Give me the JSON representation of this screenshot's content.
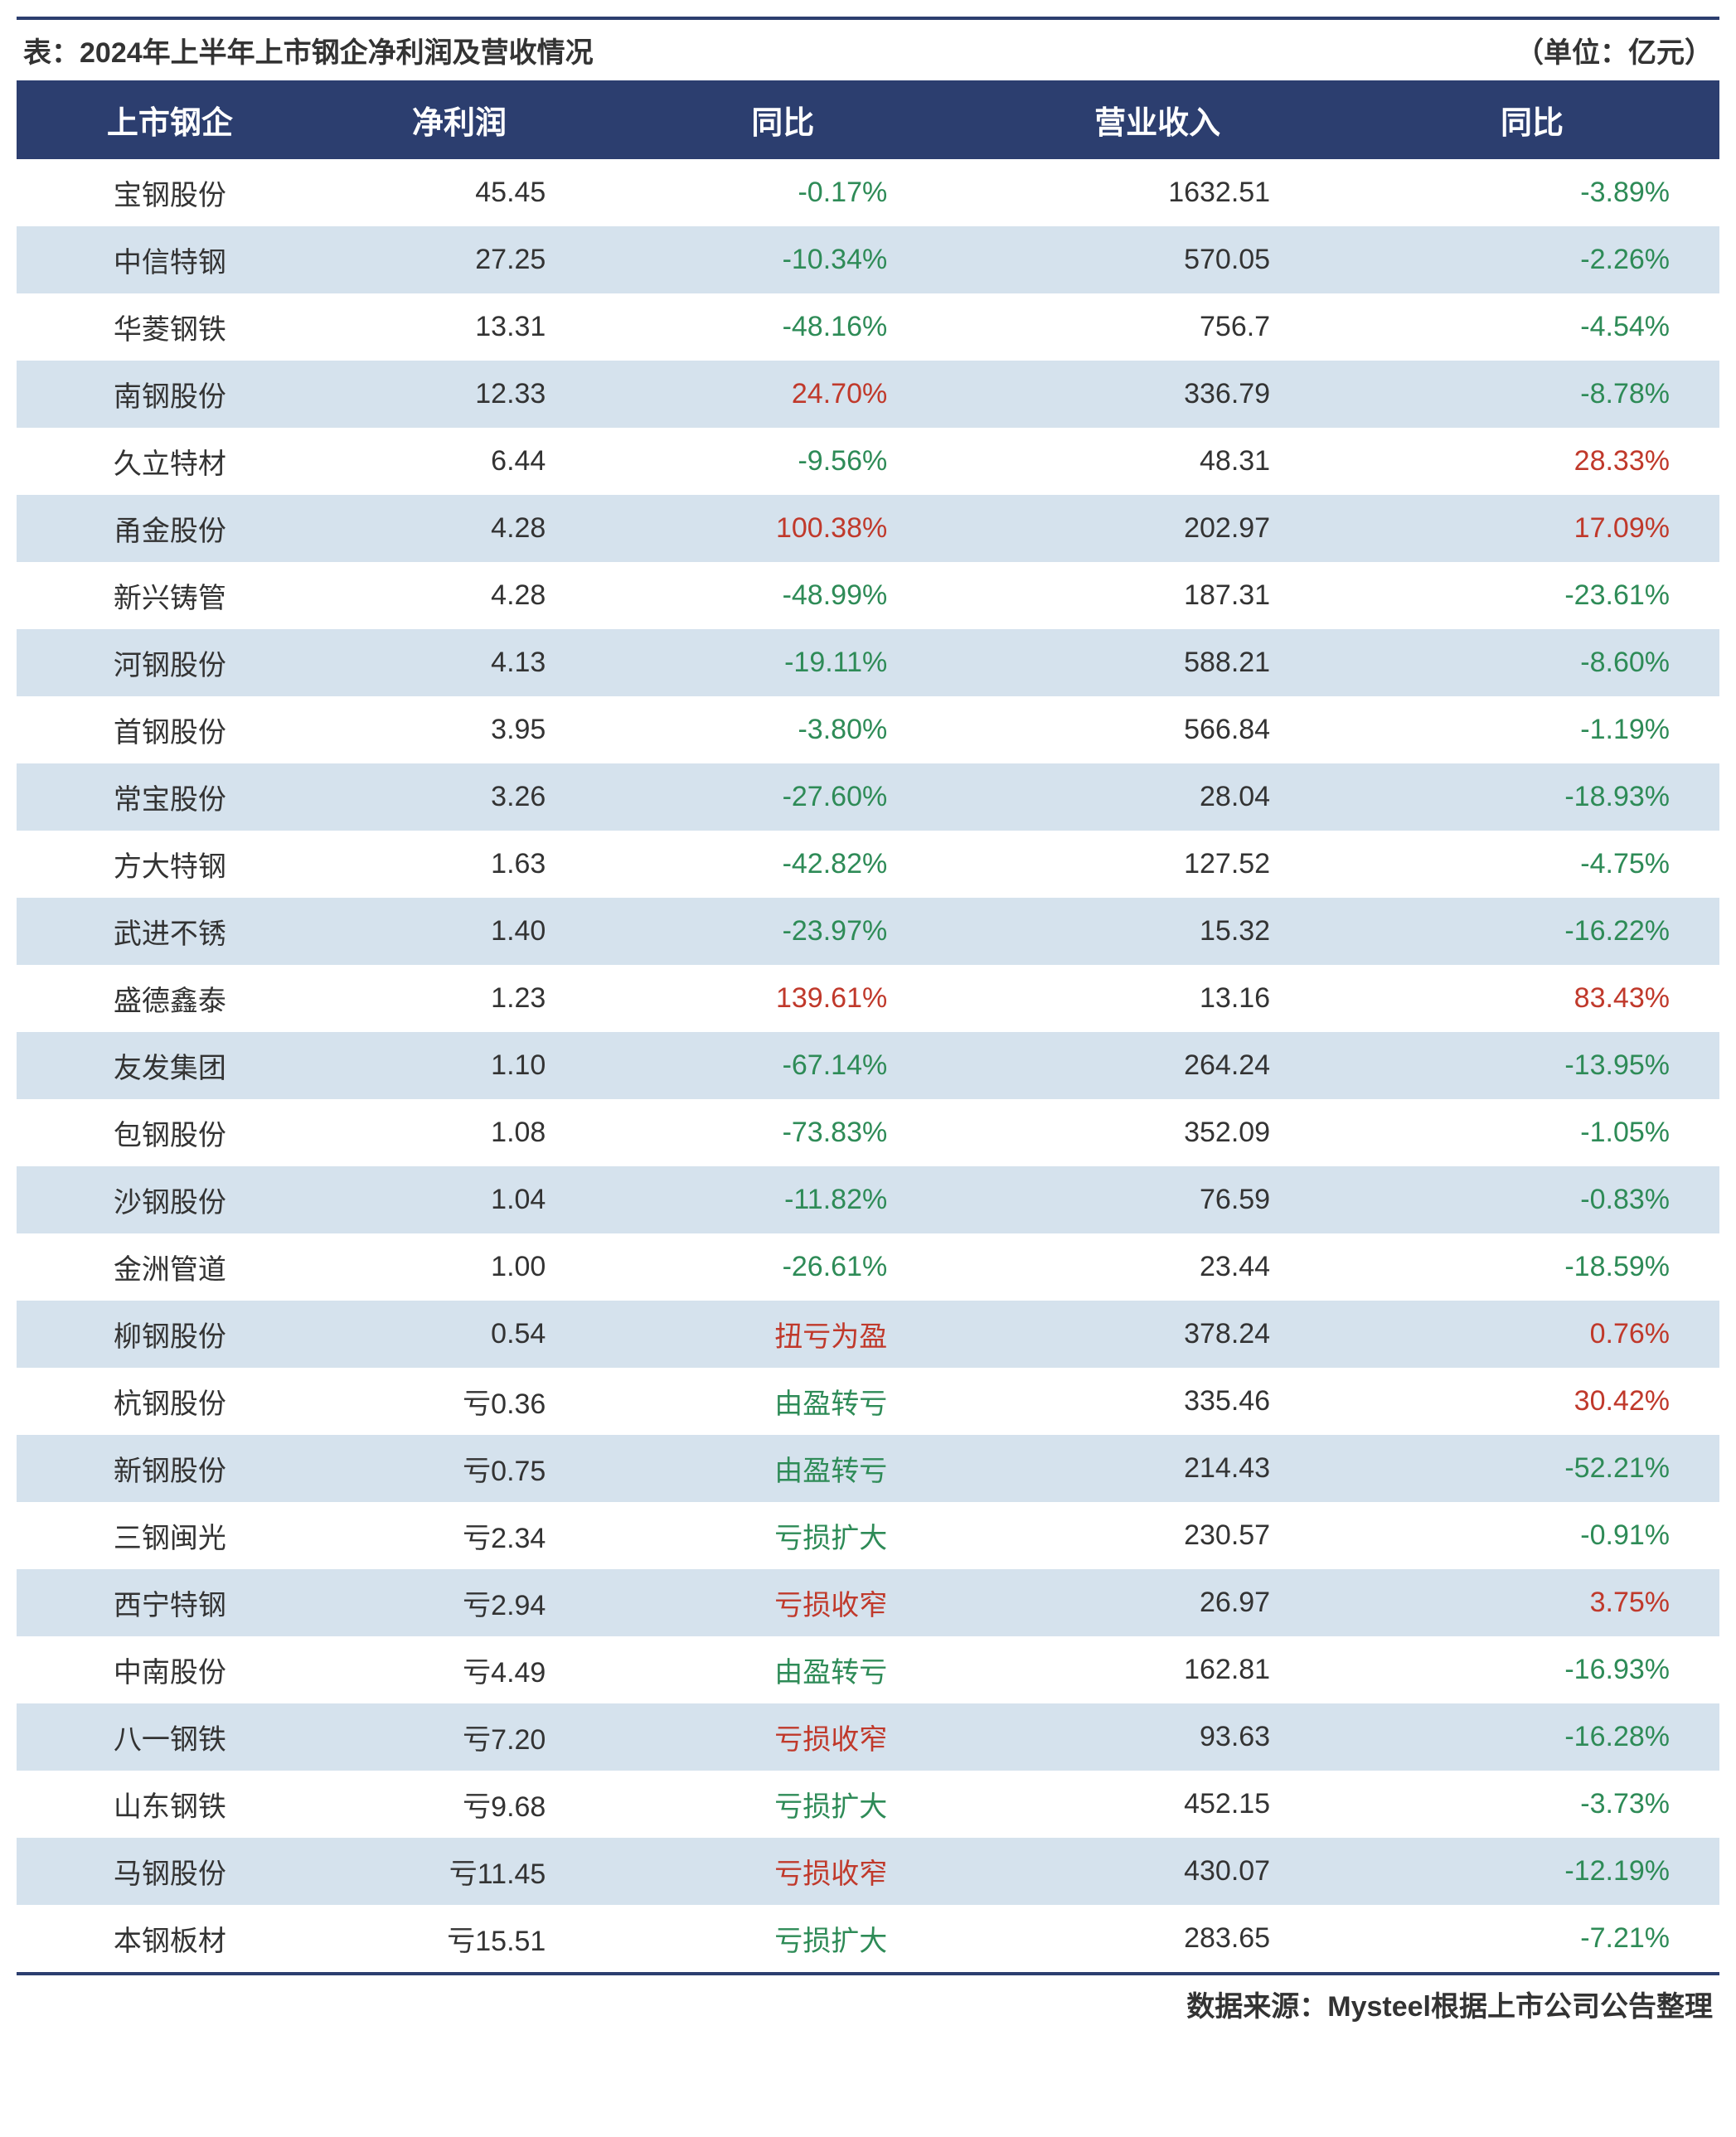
{
  "title": "表：2024年上半年上市钢企净利润及营收情况",
  "unit_label": "（单位：亿元）",
  "source_label": "数据来源：Mysteel根据上市公司公告整理",
  "columns": [
    "上市钢企",
    "净利润",
    "同比",
    "营业收入",
    "同比"
  ],
  "colors": {
    "header_bg": "#2c3e6f",
    "header_fg": "#ffffff",
    "stripe_even": "#d5e2ed",
    "stripe_odd": "#ffffff",
    "positive": "#c0392b",
    "negative": "#2e8b57",
    "text": "#333333"
  },
  "rows": [
    {
      "name": "宝钢股份",
      "profit": "45.45",
      "yoy1": "-0.17%",
      "yoy1_sign": "neg",
      "revenue": "1632.51",
      "yoy2": "-3.89%",
      "yoy2_sign": "neg"
    },
    {
      "name": "中信特钢",
      "profit": "27.25",
      "yoy1": "-10.34%",
      "yoy1_sign": "neg",
      "revenue": "570.05",
      "yoy2": "-2.26%",
      "yoy2_sign": "neg"
    },
    {
      "name": "华菱钢铁",
      "profit": "13.31",
      "yoy1": "-48.16%",
      "yoy1_sign": "neg",
      "revenue": "756.7",
      "yoy2": "-4.54%",
      "yoy2_sign": "neg"
    },
    {
      "name": "南钢股份",
      "profit": "12.33",
      "yoy1": "24.70%",
      "yoy1_sign": "pos",
      "revenue": "336.79",
      "yoy2": "-8.78%",
      "yoy2_sign": "neg"
    },
    {
      "name": "久立特材",
      "profit": "6.44",
      "yoy1": "-9.56%",
      "yoy1_sign": "neg",
      "revenue": "48.31",
      "yoy2": "28.33%",
      "yoy2_sign": "pos"
    },
    {
      "name": "甬金股份",
      "profit": "4.28",
      "yoy1": "100.38%",
      "yoy1_sign": "pos",
      "revenue": "202.97",
      "yoy2": "17.09%",
      "yoy2_sign": "pos"
    },
    {
      "name": "新兴铸管",
      "profit": "4.28",
      "yoy1": "-48.99%",
      "yoy1_sign": "neg",
      "revenue": "187.31",
      "yoy2": "-23.61%",
      "yoy2_sign": "neg"
    },
    {
      "name": "河钢股份",
      "profit": "4.13",
      "yoy1": "-19.11%",
      "yoy1_sign": "neg",
      "revenue": "588.21",
      "yoy2": "-8.60%",
      "yoy2_sign": "neg"
    },
    {
      "name": "首钢股份",
      "profit": "3.95",
      "yoy1": "-3.80%",
      "yoy1_sign": "neg",
      "revenue": "566.84",
      "yoy2": "-1.19%",
      "yoy2_sign": "neg"
    },
    {
      "name": "常宝股份",
      "profit": "3.26",
      "yoy1": "-27.60%",
      "yoy1_sign": "neg",
      "revenue": "28.04",
      "yoy2": "-18.93%",
      "yoy2_sign": "neg"
    },
    {
      "name": "方大特钢",
      "profit": "1.63",
      "yoy1": "-42.82%",
      "yoy1_sign": "neg",
      "revenue": "127.52",
      "yoy2": "-4.75%",
      "yoy2_sign": "neg"
    },
    {
      "name": "武进不锈",
      "profit": "1.40",
      "yoy1": "-23.97%",
      "yoy1_sign": "neg",
      "revenue": "15.32",
      "yoy2": "-16.22%",
      "yoy2_sign": "neg"
    },
    {
      "name": "盛德鑫泰",
      "profit": "1.23",
      "yoy1": "139.61%",
      "yoy1_sign": "pos",
      "revenue": "13.16",
      "yoy2": "83.43%",
      "yoy2_sign": "pos"
    },
    {
      "name": "友发集团",
      "profit": "1.10",
      "yoy1": "-67.14%",
      "yoy1_sign": "neg",
      "revenue": "264.24",
      "yoy2": "-13.95%",
      "yoy2_sign": "neg"
    },
    {
      "name": "包钢股份",
      "profit": "1.08",
      "yoy1": "-73.83%",
      "yoy1_sign": "neg",
      "revenue": "352.09",
      "yoy2": "-1.05%",
      "yoy2_sign": "neg"
    },
    {
      "name": "沙钢股份",
      "profit": "1.04",
      "yoy1": "-11.82%",
      "yoy1_sign": "neg",
      "revenue": "76.59",
      "yoy2": "-0.83%",
      "yoy2_sign": "neg"
    },
    {
      "name": "金洲管道",
      "profit": "1.00",
      "yoy1": "-26.61%",
      "yoy1_sign": "neg",
      "revenue": "23.44",
      "yoy2": "-18.59%",
      "yoy2_sign": "neg"
    },
    {
      "name": "柳钢股份",
      "profit": "0.54",
      "yoy1": "扭亏为盈",
      "yoy1_sign": "pos",
      "revenue": "378.24",
      "yoy2": "0.76%",
      "yoy2_sign": "pos"
    },
    {
      "name": "杭钢股份",
      "profit": "亏0.36",
      "yoy1": "由盈转亏",
      "yoy1_sign": "neg",
      "revenue": "335.46",
      "yoy2": "30.42%",
      "yoy2_sign": "pos"
    },
    {
      "name": "新钢股份",
      "profit": "亏0.75",
      "yoy1": "由盈转亏",
      "yoy1_sign": "neg",
      "revenue": "214.43",
      "yoy2": "-52.21%",
      "yoy2_sign": "neg"
    },
    {
      "name": "三钢闽光",
      "profit": "亏2.34",
      "yoy1": "亏损扩大",
      "yoy1_sign": "neg",
      "revenue": "230.57",
      "yoy2": "-0.91%",
      "yoy2_sign": "neg"
    },
    {
      "name": "西宁特钢",
      "profit": "亏2.94",
      "yoy1": "亏损收窄",
      "yoy1_sign": "pos",
      "revenue": "26.97",
      "yoy2": "3.75%",
      "yoy2_sign": "pos"
    },
    {
      "name": "中南股份",
      "profit": "亏4.49",
      "yoy1": "由盈转亏",
      "yoy1_sign": "neg",
      "revenue": "162.81",
      "yoy2": "-16.93%",
      "yoy2_sign": "neg"
    },
    {
      "name": "八一钢铁",
      "profit": "亏7.20",
      "yoy1": "亏损收窄",
      "yoy1_sign": "pos",
      "revenue": "93.63",
      "yoy2": "-16.28%",
      "yoy2_sign": "neg"
    },
    {
      "name": "山东钢铁",
      "profit": "亏9.68",
      "yoy1": "亏损扩大",
      "yoy1_sign": "neg",
      "revenue": "452.15",
      "yoy2": "-3.73%",
      "yoy2_sign": "neg"
    },
    {
      "name": "马钢股份",
      "profit": "亏11.45",
      "yoy1": "亏损收窄",
      "yoy1_sign": "pos",
      "revenue": "430.07",
      "yoy2": "-12.19%",
      "yoy2_sign": "neg"
    },
    {
      "name": "本钢板材",
      "profit": "亏15.51",
      "yoy1": "亏损扩大",
      "yoy1_sign": "neg",
      "revenue": "283.65",
      "yoy2": "-7.21%",
      "yoy2_sign": "neg"
    }
  ]
}
